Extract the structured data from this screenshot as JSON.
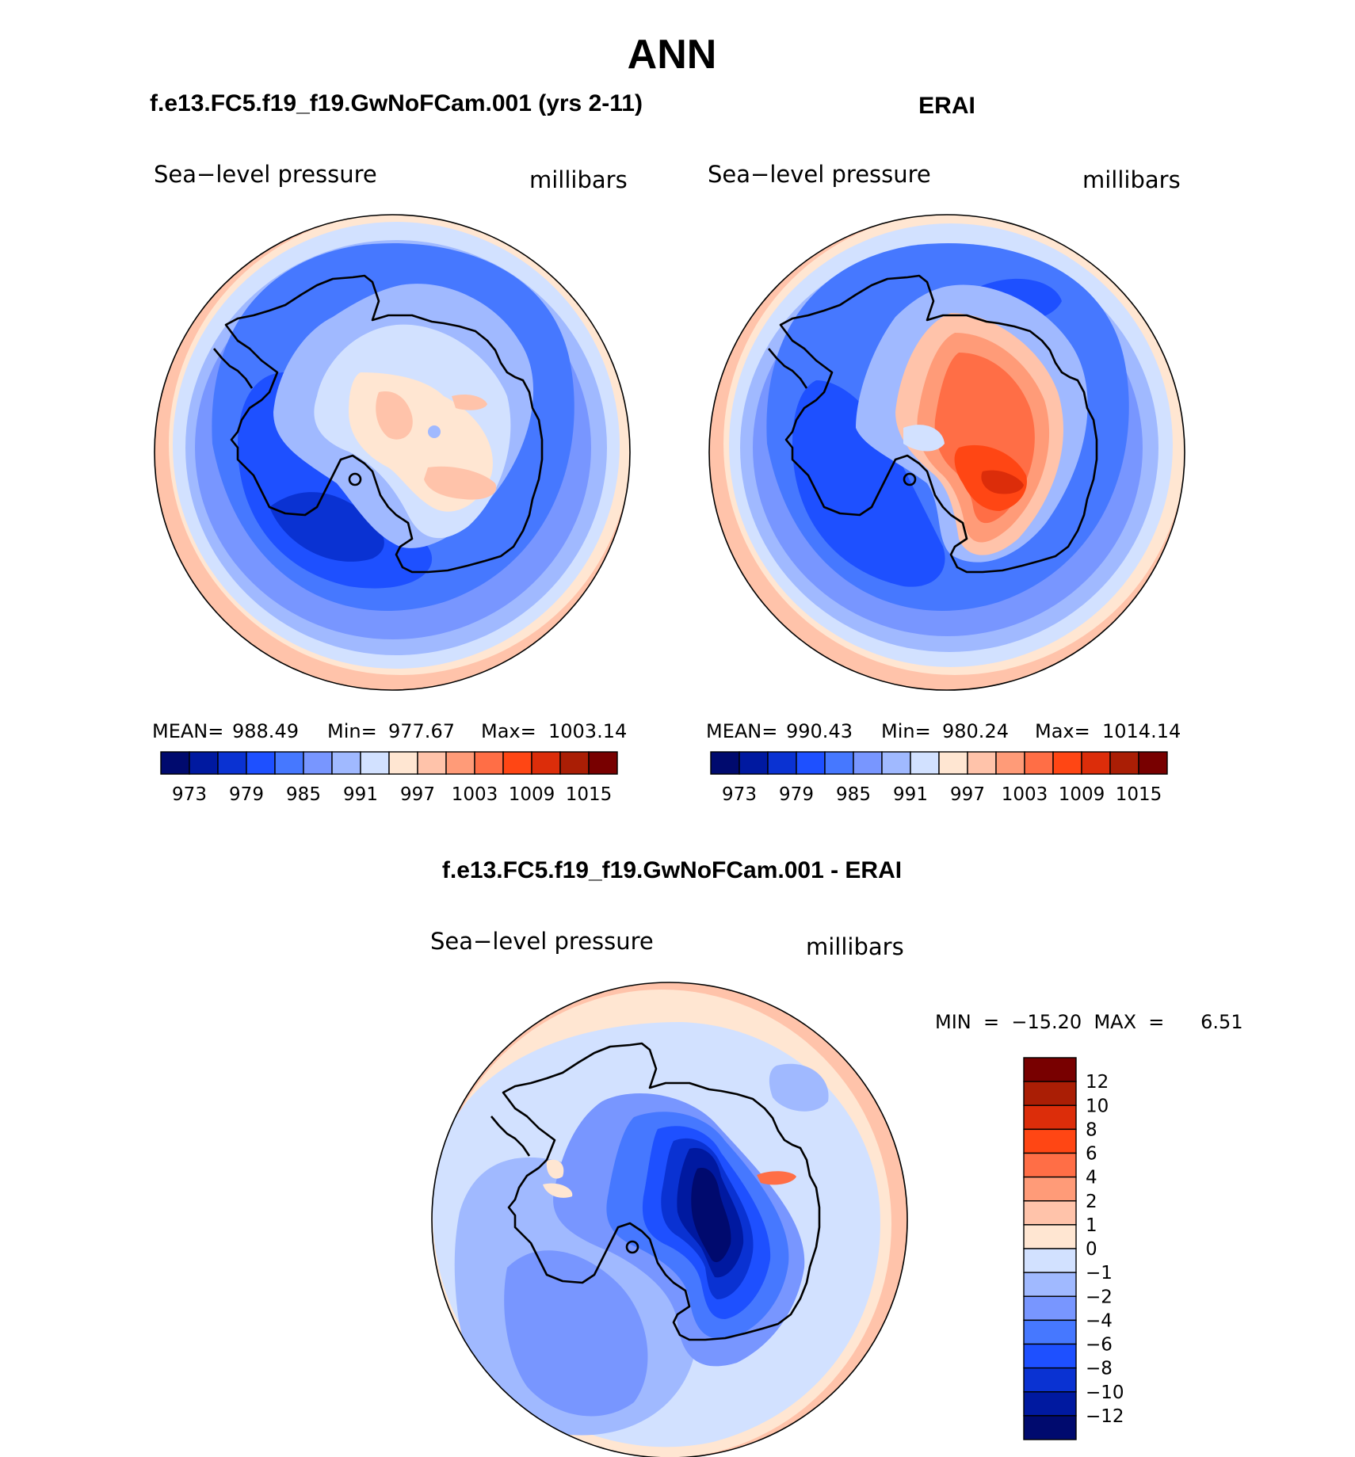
{
  "figure": {
    "season": "ANN",
    "top_left_title": "f.e13.FC5.f19_f19.GwNoFCam.001 (yrs 2-11)",
    "top_right_title": "ERAI",
    "bottom_title": "f.e13.FC5.f19_f19.GwNoFCam.001 - ERAI"
  },
  "panels": {
    "model": {
      "variable": "Sea−level pressure",
      "units": "millibars",
      "stats": {
        "mean_label": "MEAN=",
        "mean": "988.49",
        "min_label": "Min=",
        "min": "977.67",
        "max_label": "Max=",
        "max": "1003.14"
      }
    },
    "obs": {
      "variable": "Sea−level pressure",
      "units": "millibars",
      "stats": {
        "mean_label": "MEAN=",
        "mean": "990.43",
        "min_label": "Min=",
        "min": "980.24",
        "max_label": "Max=",
        "max": "1014.14"
      }
    },
    "diff": {
      "variable": "Sea−level pressure",
      "units": "millibars",
      "minmax_text": "MIN  =  −15.20  MAX  =      6.51"
    }
  },
  "colorbars": {
    "abs": {
      "colors": [
        "#000a6e",
        "#0019a0",
        "#0a32d2",
        "#1e50ff",
        "#4678ff",
        "#7896ff",
        "#a0b9ff",
        "#d2e1ff",
        "#ffe6d2",
        "#ffc3aa",
        "#ff9b78",
        "#ff6e46",
        "#ff4614",
        "#dc2d0a",
        "#aa1e05",
        "#780000"
      ],
      "tick_labels": [
        "973",
        "979",
        "985",
        "991",
        "997",
        "1003",
        "1009",
        "1015"
      ]
    },
    "diff": {
      "colors": [
        "#780000",
        "#aa1e05",
        "#dc2d0a",
        "#ff4614",
        "#ff6e46",
        "#ff9b78",
        "#ffc3aa",
        "#ffe6d2",
        "#d2e1ff",
        "#a0b9ff",
        "#7896ff",
        "#4678ff",
        "#1e50ff",
        "#0a32d2",
        "#0019a0",
        "#000a6e"
      ],
      "tick_labels": [
        "12",
        "10",
        "8",
        "6",
        "4",
        "2",
        "1",
        "0",
        "−1",
        "−2",
        "−4",
        "−6",
        "−8",
        "−10",
        "−12"
      ]
    }
  },
  "chart_data": [
    {
      "type": "heatmap",
      "projection": "south-polar stereographic",
      "region": "Antarctica / Southern Ocean",
      "title": "f.e13.FC5.f19_f19.GwNoFCam.001 (yrs 2-11)",
      "variable": "Sea-level pressure",
      "units": "millibars",
      "mean": 988.49,
      "min": 977.67,
      "max": 1003.14,
      "contour_levels": [
        973,
        976,
        979,
        982,
        985,
        988,
        991,
        994,
        997,
        1000,
        1003,
        1006,
        1009,
        1012,
        1015
      ]
    },
    {
      "type": "heatmap",
      "projection": "south-polar stereographic",
      "region": "Antarctica / Southern Ocean",
      "title": "ERAI",
      "variable": "Sea-level pressure",
      "units": "millibars",
      "mean": 990.43,
      "min": 980.24,
      "max": 1014.14,
      "contour_levels": [
        973,
        976,
        979,
        982,
        985,
        988,
        991,
        994,
        997,
        1000,
        1003,
        1006,
        1009,
        1012,
        1015
      ]
    },
    {
      "type": "heatmap",
      "projection": "south-polar stereographic",
      "region": "Antarctica / Southern Ocean",
      "title": "f.e13.FC5.f19_f19.GwNoFCam.001 - ERAI",
      "variable": "Sea-level pressure difference",
      "units": "millibars",
      "min": -15.2,
      "max": 6.51,
      "contour_levels": [
        -12,
        -10,
        -8,
        -6,
        -4,
        -2,
        -1,
        0,
        1,
        2,
        4,
        6,
        8,
        10,
        12
      ]
    }
  ]
}
